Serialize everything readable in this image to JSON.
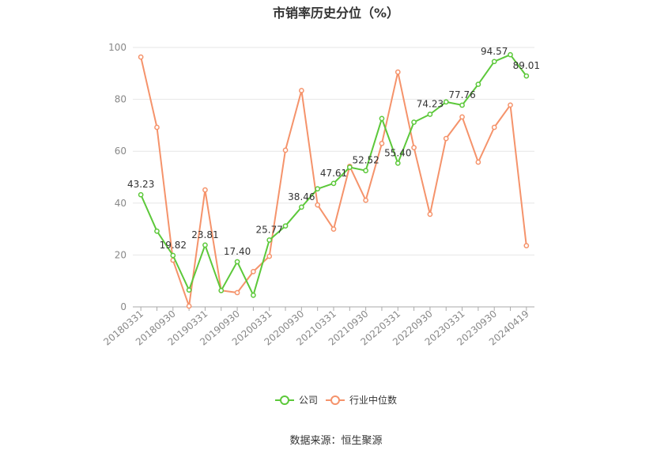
{
  "chart_data": {
    "type": "line",
    "title": "市销率历史分位（%）",
    "source": "数据来源：恒生聚源",
    "ylim": [
      0,
      100
    ],
    "yticks": [
      0,
      20,
      40,
      60,
      80,
      100
    ],
    "grid": true,
    "legend_position": "bottom-center",
    "x": [
      "20180331",
      "20180630",
      "20180930",
      "20181231",
      "20190331",
      "20190630",
      "20190930",
      "20191231",
      "20200331",
      "20200630",
      "20200930",
      "20201231",
      "20210331",
      "20210630",
      "20210930",
      "20211231",
      "20220331",
      "20220630",
      "20220930",
      "20221231",
      "20230331",
      "20230630",
      "20230930",
      "20231231",
      "20240419"
    ],
    "x_tick_labels": [
      "20180331",
      "20180930",
      "20190331",
      "20190930",
      "20200331",
      "20200930",
      "20210331",
      "20210930",
      "20220331",
      "20220930",
      "20230331",
      "20230930",
      "20240419"
    ],
    "series": [
      {
        "name": "公司",
        "color": "#5cc83a",
        "values": [
          43.23,
          29.2,
          19.82,
          6.5,
          23.81,
          6.3,
          17.4,
          4.5,
          25.77,
          31.2,
          38.46,
          45.5,
          47.61,
          53.8,
          52.52,
          72.6,
          55.4,
          71.2,
          74.23,
          79.0,
          77.76,
          85.8,
          94.57,
          97.2,
          89.01
        ],
        "labels": {
          "0": "43.23",
          "2": "19.82",
          "4": "23.81",
          "6": "17.40",
          "8": "25.77",
          "10": "38.46",
          "12": "47.61",
          "14": "52.52",
          "16": "55.40",
          "18": "74.23",
          "20": "77.76",
          "22": "94.57",
          "24": "89.01"
        }
      },
      {
        "name": "行业中位数",
        "color": "#f5936b",
        "values": [
          96.3,
          69.2,
          18.0,
          0.3,
          45.1,
          6.3,
          5.5,
          13.6,
          19.5,
          60.4,
          83.4,
          39.3,
          30.0,
          54.2,
          41.1,
          63.0,
          90.5,
          61.4,
          35.7,
          64.9,
          73.2,
          55.8,
          69.2,
          77.8,
          23.6
        ]
      }
    ]
  }
}
